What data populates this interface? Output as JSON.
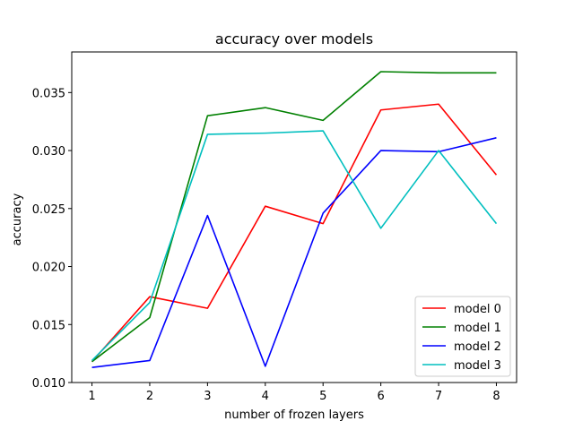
{
  "chart_data": {
    "type": "line",
    "title": "accuracy over models",
    "xlabel": "number of frozen layers",
    "ylabel": "accuracy",
    "x": [
      1,
      2,
      3,
      4,
      5,
      6,
      7,
      8
    ],
    "xticks": [
      "1",
      "2",
      "3",
      "4",
      "5",
      "6",
      "7",
      "8"
    ],
    "yticks": [
      "0.010",
      "0.015",
      "0.020",
      "0.025",
      "0.030",
      "0.035"
    ],
    "ytick_values": [
      0.01,
      0.015,
      0.02,
      0.025,
      0.03,
      0.035
    ],
    "xlim": [
      0.65,
      8.35
    ],
    "ylim": [
      0.01,
      0.0385
    ],
    "grid": false,
    "legend_position": "lower-right",
    "series": [
      {
        "name": "model 0",
        "color": "#ff0000",
        "values": [
          0.0118,
          0.0174,
          0.0164,
          0.0252,
          0.0237,
          0.0335,
          0.034,
          0.0279
        ]
      },
      {
        "name": "model 1",
        "color": "#008000",
        "values": [
          0.0118,
          0.0156,
          0.033,
          0.0337,
          0.0326,
          0.0368,
          0.0367,
          0.0367
        ]
      },
      {
        "name": "model 2",
        "color": "#0000ff",
        "values": [
          0.0113,
          0.0119,
          0.0244,
          0.0114,
          0.0246,
          0.03,
          0.0299,
          0.0311
        ]
      },
      {
        "name": "model 3",
        "color": "#00bfbf",
        "values": [
          0.0119,
          0.0169,
          0.0314,
          0.0315,
          0.0317,
          0.0233,
          0.03,
          0.0237
        ]
      }
    ]
  }
}
